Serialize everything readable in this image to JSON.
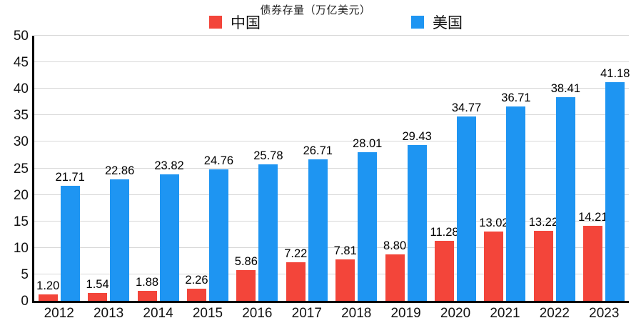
{
  "title": "债券存量（万亿美元）",
  "legend": {
    "china_label": "中国",
    "usa_label": "美国"
  },
  "colors": {
    "china": "#F3453A",
    "usa": "#1E95F2",
    "grid": "#D8D8D8",
    "axis": "#000000"
  },
  "chart_data": {
    "type": "bar",
    "title": "债券存量（万亿美元）",
    "xlabel": "",
    "ylabel": "",
    "categories": [
      "2012",
      "2013",
      "2014",
      "2015",
      "2016",
      "2017",
      "2018",
      "2019",
      "2020",
      "2021",
      "2022",
      "2023"
    ],
    "series": [
      {
        "name": "中国",
        "color": "#F3453A",
        "values": [
          1.2,
          1.54,
          1.88,
          2.26,
          5.86,
          7.22,
          7.81,
          8.8,
          11.28,
          13.02,
          13.22,
          14.21
        ]
      },
      {
        "name": "美国",
        "color": "#1E95F2",
        "values": [
          21.71,
          22.86,
          23.82,
          24.76,
          25.78,
          26.71,
          28.01,
          29.43,
          34.77,
          36.71,
          38.41,
          41.18
        ]
      }
    ],
    "ylim": [
      0,
      50
    ],
    "yticks": [
      0,
      5,
      10,
      15,
      20,
      25,
      30,
      35,
      40,
      45,
      50
    ],
    "grid": true,
    "legend_position": "top",
    "data_labels": true,
    "label_decimals": 2
  }
}
